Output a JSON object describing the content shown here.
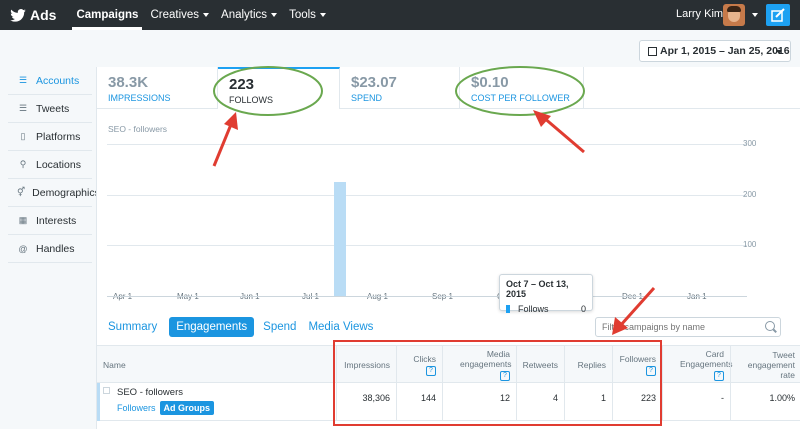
{
  "topnav": {
    "brand": "Ads",
    "items": [
      {
        "label": "Campaigns",
        "active": true,
        "dropdown": false
      },
      {
        "label": "Creatives",
        "active": false,
        "dropdown": true
      },
      {
        "label": "Analytics",
        "active": false,
        "dropdown": true
      },
      {
        "label": "Tools",
        "active": false,
        "dropdown": true
      }
    ],
    "user_name": "Larry Kim"
  },
  "date_range": "Apr 1, 2015 – Jan 25, 2016",
  "sidebar": {
    "items": [
      {
        "label": "Accounts",
        "icon": "list-icon",
        "active": true
      },
      {
        "label": "Tweets",
        "icon": "list-icon",
        "active": false
      },
      {
        "label": "Platforms",
        "icon": "phone-icon",
        "active": false
      },
      {
        "label": "Locations",
        "icon": "pin-icon",
        "active": false
      },
      {
        "label": "Demographics",
        "icon": "gender-icon",
        "active": false
      },
      {
        "label": "Interests",
        "icon": "grid-icon",
        "active": false
      },
      {
        "label": "Handles",
        "icon": "at-icon",
        "active": false
      }
    ]
  },
  "metrics": [
    {
      "value": "38.3K",
      "label": "IMPRESSIONS",
      "selected": false
    },
    {
      "value": "223",
      "label": "FOLLOWS",
      "selected": true
    },
    {
      "value": "$23.07",
      "label": "SPEND",
      "selected": false
    },
    {
      "value": "$0.10",
      "label": "COST PER FOLLOWER",
      "selected": false
    }
  ],
  "chart_data": {
    "type": "bar",
    "title": "SEO - followers",
    "x_ticks": [
      "Apr 1",
      "May 1",
      "Jun 1",
      "Jul 1",
      "Aug 1",
      "Sep 1",
      "Oct 1",
      "Nov 1",
      "Dec 1",
      "Jan 1"
    ],
    "y_ticks": [
      100,
      200,
      300
    ],
    "ylim": [
      0,
      320
    ],
    "bar_color": "#b9dcf5",
    "series": [
      {
        "values": [
          {
            "x": "Jul 6 – Jul 12, 2015",
            "y": 225
          }
        ]
      }
    ],
    "tooltip": {
      "title": "Oct 7 – Oct 13, 2015",
      "label": "Follows",
      "value": "0"
    }
  },
  "tabs": [
    "Summary",
    "Engagements",
    "Spend",
    "Media Views"
  ],
  "active_tab": "Engagements",
  "filter_placeholder": "Filter campaigns by name",
  "table": {
    "columns": [
      {
        "label": "Name",
        "help": false
      },
      {
        "label": "Impressions",
        "help": false
      },
      {
        "label": "Clicks",
        "help": true
      },
      {
        "label": "Media engagements",
        "help": true
      },
      {
        "label": "Retweets",
        "help": false
      },
      {
        "label": "Replies",
        "help": false
      },
      {
        "label": "Followers",
        "help": true
      },
      {
        "label": "Card Engagements",
        "help": true
      },
      {
        "label": "Tweet engagement rate",
        "help": false
      }
    ],
    "rows": [
      {
        "name": "SEO - followers",
        "objective": "Followers",
        "badge": "Ad Groups",
        "cells": [
          "38,306",
          "144",
          "12",
          "4",
          "1",
          "223",
          "-",
          "1.00%"
        ]
      }
    ]
  },
  "colors": {
    "nav_bg": "#292f33",
    "accent": "#1b95e0",
    "annotation_green": "#6aa84f",
    "annotation_red": "#e03c31"
  }
}
